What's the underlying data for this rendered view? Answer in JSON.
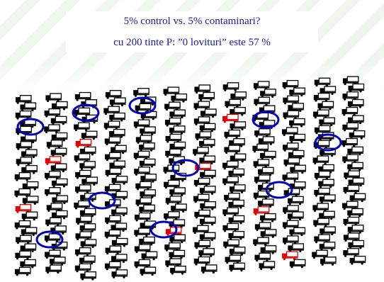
{
  "slide": {
    "title_line1": "5% control vs. 5% contaminari?",
    "title_line2": "cu 200 tinte P: ”0 lovituri” este 57 %"
  },
  "colors": {
    "text": "#1a1aa8",
    "truck": "#000000",
    "truck_highlight": "#e00000",
    "circle": "#0000c0"
  },
  "icons": {
    "truck": "truck-icon",
    "highlighted_truck": "red-truck-icon",
    "marker": "blue-circle-marker"
  }
}
